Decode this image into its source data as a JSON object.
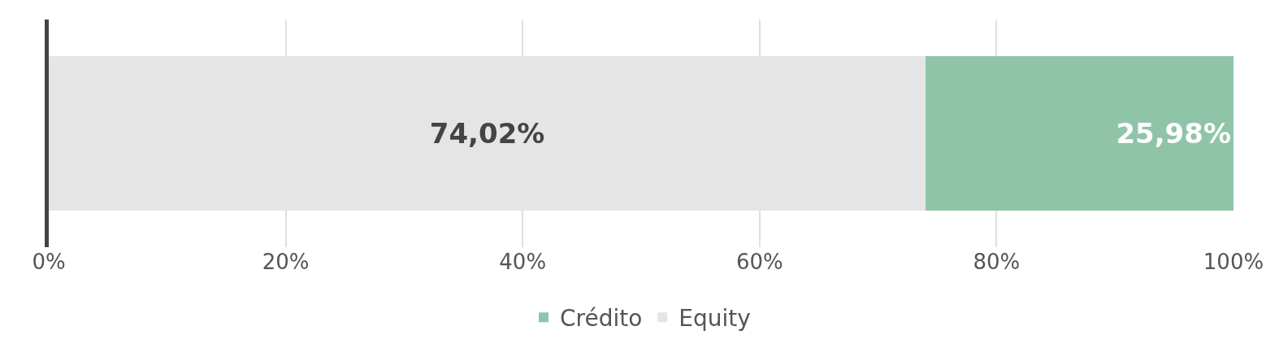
{
  "chart_data": {
    "type": "bar",
    "orientation": "horizontal",
    "stacked": true,
    "categories": [
      null
    ],
    "series": [
      {
        "name": "Equity",
        "color": "#e5e5e5",
        "values": [
          74.02
        ],
        "value_labels": [
          "74,02%"
        ]
      },
      {
        "name": "Crédito",
        "color": "#8fc4a8",
        "values": [
          25.98
        ],
        "value_labels": [
          "25,98%"
        ]
      }
    ],
    "xlim": [
      0,
      100
    ],
    "xticks": [
      {
        "value": 0,
        "label": "0%"
      },
      {
        "value": 20,
        "label": "20%"
      },
      {
        "value": 40,
        "label": "40%"
      },
      {
        "value": 60,
        "label": "60%"
      },
      {
        "value": 80,
        "label": "80%"
      },
      {
        "value": 100,
        "label": "100%"
      }
    ],
    "grid": "x",
    "legend": "bottom",
    "tick_labels": "x"
  }
}
